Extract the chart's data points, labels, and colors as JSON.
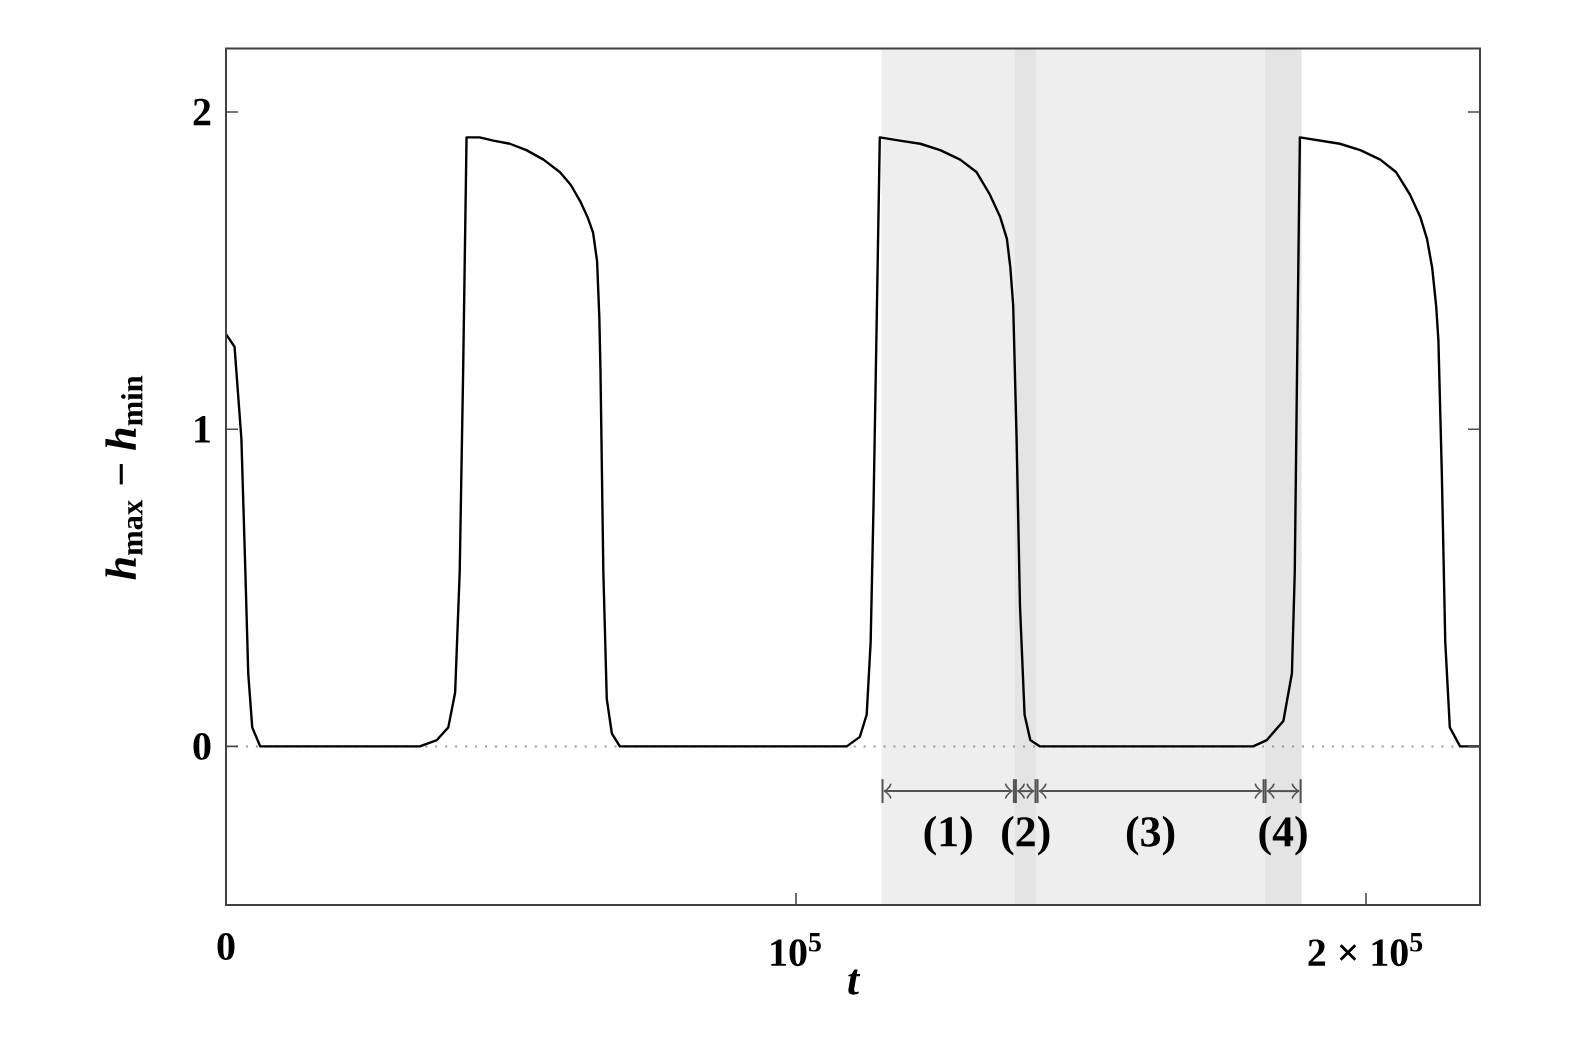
{
  "chart_data": {
    "type": "line",
    "xlabel": "t",
    "ylabel": "*h*$_{max}$ − *h*$_{min}$",
    "xlim": [
      0,
      220000
    ],
    "ylim": [
      -0.5,
      2.2
    ],
    "xticks": [
      0,
      {
        "value": 100000,
        "label": "10$^{5}$"
      },
      {
        "value": 200000,
        "label": "2 × 10$^{5}$"
      }
    ],
    "yticks": [
      0,
      1,
      2
    ],
    "x": [
      0,
      1500,
      2700,
      3400,
      3900,
      4600,
      6000,
      34000,
      37000,
      39000,
      40200,
      41000,
      41600,
      42200,
      44500,
      46900,
      49800,
      52700,
      55700,
      58600,
      60500,
      62100,
      63400,
      64400,
      65100,
      65500,
      65700,
      66200,
      66800,
      67700,
      69100,
      108900,
      111200,
      112400,
      113100,
      113600,
      114200,
      114700,
      118200,
      121800,
      125300,
      128800,
      131700,
      134000,
      135800,
      137000,
      137600,
      138100,
      138700,
      139300,
      140100,
      141100,
      142800,
      180200,
      182600,
      185500,
      187000,
      187500,
      187900,
      188400,
      191900,
      195400,
      199000,
      202500,
      205300,
      207700,
      209500,
      210700,
      211600,
      212300,
      212700,
      213300,
      213900,
      214700,
      216500,
      220000
    ],
    "values": [
      1.3,
      1.26,
      0.97,
      0.55,
      0.23,
      0.06,
      0,
      0,
      0.02,
      0.06,
      0.17,
      0.55,
      1.18,
      1.92,
      1.92,
      1.91,
      1.9,
      1.88,
      1.85,
      1.81,
      1.77,
      1.72,
      1.67,
      1.62,
      1.53,
      1.35,
      1.18,
      0.55,
      0.15,
      0.04,
      0,
      0,
      0.03,
      0.1,
      0.33,
      0.76,
      1.39,
      1.92,
      1.91,
      1.9,
      1.88,
      1.85,
      1.81,
      1.74,
      1.67,
      1.6,
      1.51,
      1.39,
      0.97,
      0.44,
      0.1,
      0.02,
      0,
      0,
      0.02,
      0.08,
      0.23,
      0.55,
      1.18,
      1.92,
      1.91,
      1.9,
      1.88,
      1.85,
      1.81,
      1.74,
      1.67,
      1.6,
      1.51,
      1.39,
      1.28,
      0.86,
      0.33,
      0.06,
      0,
      0
    ],
    "color": "#000000",
    "ref_lines": [
      {
        "axis": "y",
        "value": 0,
        "color": "#999999",
        "line_style": "dotted"
      }
    ],
    "bands": [
      {
        "axis": "x",
        "from": 115000,
        "to": 138400,
        "label": "(1)",
        "color": "#eeeeee"
      },
      {
        "axis": "x",
        "from": 138400,
        "to": 142200,
        "label": "(2)",
        "color": "#e4e4e4"
      },
      {
        "axis": "x",
        "from": 142200,
        "to": 182200,
        "label": "(3)",
        "color": "#eeeeee"
      },
      {
        "axis": "x",
        "from": 182200,
        "to": 188700,
        "label": "(4)",
        "color": "#e4e4e4"
      }
    ]
  }
}
